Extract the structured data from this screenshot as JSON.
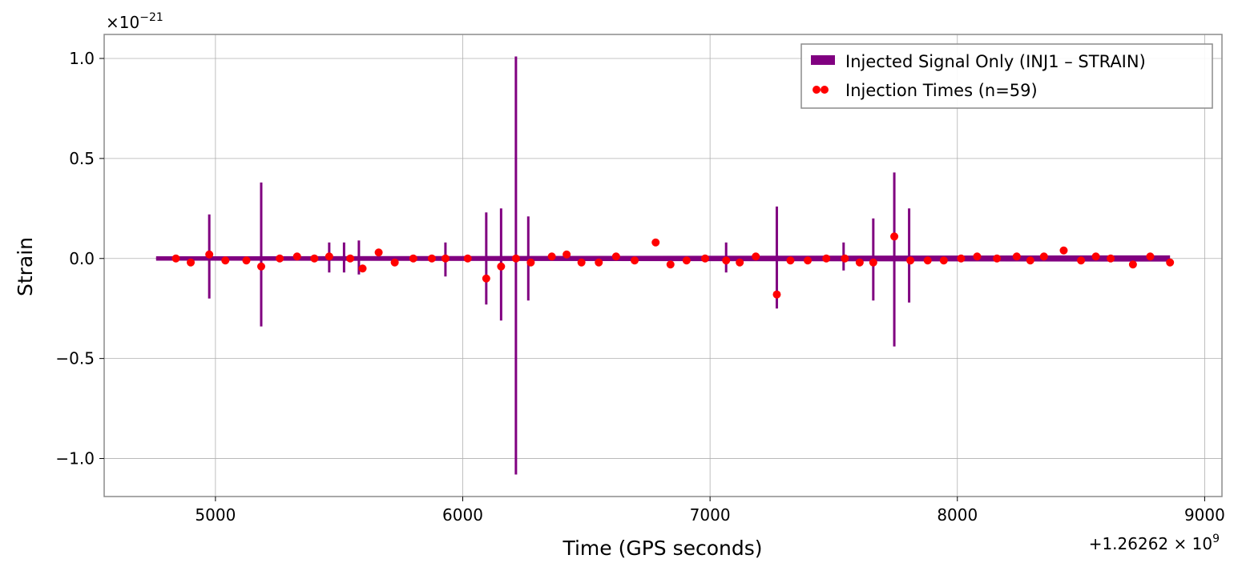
{
  "chart_data": {
    "type": "line",
    "xlabel": "Time (GPS seconds)",
    "ylabel": "Strain",
    "x_offset_label": "+1.26262 × 10",
    "x_offset_exponent": "9",
    "y_multiplier_label": "×10",
    "y_multiplier_exponent": "−21",
    "xlim": [
      4550,
      9070
    ],
    "ylim": [
      -1.19,
      1.12
    ],
    "xticks": [
      5000,
      6000,
      7000,
      8000,
      9000
    ],
    "xtick_labels": [
      "5000",
      "6000",
      "7000",
      "8000",
      "9000"
    ],
    "yticks": [
      -1.0,
      -0.5,
      0.0,
      0.5,
      1.0
    ],
    "ytick_labels": [
      "−1.0",
      "−0.5",
      "0.0",
      "0.5",
      "1.0"
    ],
    "grid": true,
    "legend_position": "top-right",
    "colors": {
      "signal": "#800080",
      "injections": "#ff0000"
    },
    "signal_series": {
      "name": "Injected Signal Only (INJ1 – STRAIN)",
      "start": 4760,
      "end": 8860,
      "baseline_band": 0.012,
      "bursts": [
        {
          "t": 4975,
          "max": 0.22,
          "min": -0.2
        },
        {
          "t": 5185,
          "max": 0.38,
          "min": -0.34
        },
        {
          "t": 5460,
          "max": 0.08,
          "min": -0.07
        },
        {
          "t": 5520,
          "max": 0.08,
          "min": -0.07
        },
        {
          "t": 5580,
          "max": 0.09,
          "min": -0.08
        },
        {
          "t": 5930,
          "max": 0.08,
          "min": -0.09
        },
        {
          "t": 6095,
          "max": 0.23,
          "min": -0.23
        },
        {
          "t": 6155,
          "max": 0.25,
          "min": -0.31
        },
        {
          "t": 6215,
          "max": 1.01,
          "min": -1.08
        },
        {
          "t": 6265,
          "max": 0.21,
          "min": -0.21
        },
        {
          "t": 7065,
          "max": 0.08,
          "min": -0.07
        },
        {
          "t": 7270,
          "max": 0.26,
          "min": -0.25
        },
        {
          "t": 7540,
          "max": 0.08,
          "min": -0.06
        },
        {
          "t": 7660,
          "max": 0.2,
          "min": -0.21
        },
        {
          "t": 7745,
          "max": 0.43,
          "min": -0.44
        },
        {
          "t": 7805,
          "max": 0.25,
          "min": -0.22
        }
      ]
    },
    "injection_series": {
      "name": "Injection Times (n=59)",
      "points": [
        [
          4840,
          0.0
        ],
        [
          4900,
          -0.02
        ],
        [
          4975,
          0.02
        ],
        [
          5040,
          -0.01
        ],
        [
          5125,
          -0.01
        ],
        [
          5185,
          -0.04
        ],
        [
          5260,
          0.0
        ],
        [
          5330,
          0.01
        ],
        [
          5400,
          0.0
        ],
        [
          5460,
          0.01
        ],
        [
          5545,
          0.0
        ],
        [
          5595,
          -0.05
        ],
        [
          5660,
          0.03
        ],
        [
          5725,
          -0.02
        ],
        [
          5800,
          0.0
        ],
        [
          5875,
          0.0
        ],
        [
          5930,
          0.0
        ],
        [
          6020,
          0.0
        ],
        [
          6095,
          -0.1
        ],
        [
          6155,
          -0.04
        ],
        [
          6215,
          0.0
        ],
        [
          6275,
          -0.02
        ],
        [
          6360,
          0.01
        ],
        [
          6420,
          0.02
        ],
        [
          6480,
          -0.02
        ],
        [
          6550,
          -0.02
        ],
        [
          6620,
          0.01
        ],
        [
          6695,
          -0.01
        ],
        [
          6780,
          0.08
        ],
        [
          6840,
          -0.03
        ],
        [
          6905,
          -0.01
        ],
        [
          6980,
          0.0
        ],
        [
          7065,
          -0.01
        ],
        [
          7120,
          -0.02
        ],
        [
          7185,
          0.01
        ],
        [
          7270,
          -0.18
        ],
        [
          7325,
          -0.01
        ],
        [
          7395,
          -0.01
        ],
        [
          7470,
          0.0
        ],
        [
          7545,
          0.0
        ],
        [
          7605,
          -0.02
        ],
        [
          7660,
          -0.02
        ],
        [
          7745,
          0.11
        ],
        [
          7810,
          -0.01
        ],
        [
          7880,
          -0.01
        ],
        [
          7945,
          -0.01
        ],
        [
          8015,
          0.0
        ],
        [
          8080,
          0.01
        ],
        [
          8160,
          0.0
        ],
        [
          8240,
          0.01
        ],
        [
          8295,
          -0.01
        ],
        [
          8350,
          0.01
        ],
        [
          8430,
          0.04
        ],
        [
          8500,
          -0.01
        ],
        [
          8560,
          0.01
        ],
        [
          8620,
          0.0
        ],
        [
          8710,
          -0.03
        ],
        [
          8780,
          0.01
        ],
        [
          8860,
          -0.02
        ]
      ]
    }
  }
}
